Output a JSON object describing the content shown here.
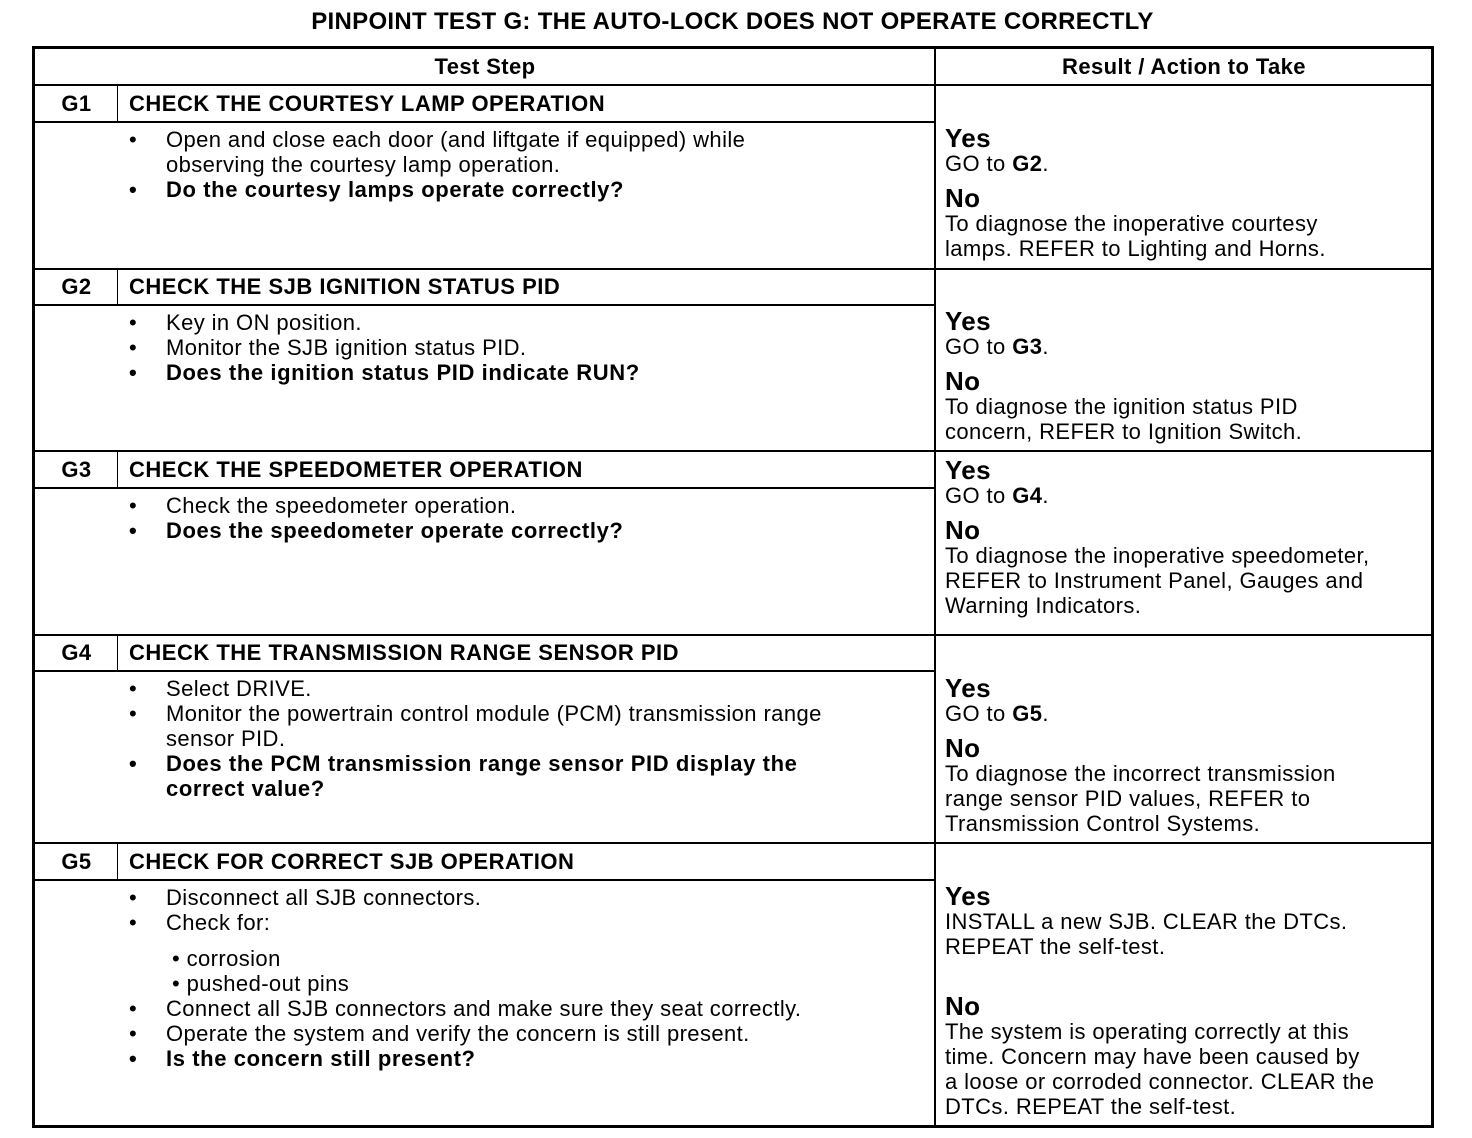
{
  "document": {
    "title": "PINPOINT TEST  G: THE AUTO-LOCK DOES NOT OPERATE CORRECTLY",
    "columns": {
      "test_step": "Test Step",
      "result": "Result / Action to Take"
    },
    "steps": [
      {
        "id": "G1",
        "title": "CHECK THE COURTESY LAMP OPERATION",
        "bullets": [
          {
            "text": "Open and close each door (and liftgate if equipped) while\nobserving the courtesy lamp operation.",
            "bold": false
          },
          {
            "text": "Do the courtesy lamps operate correctly?",
            "bold": true
          }
        ],
        "yes_label": "Yes",
        "yes_prefix": "GO to ",
        "yes_target": "G2",
        "yes_suffix": ".",
        "no_label": "No",
        "no_text": "To diagnose the inoperative courtesy\nlamps. REFER to Lighting and Horns."
      },
      {
        "id": "G2",
        "title": "CHECK THE SJB IGNITION STATUS PID",
        "bullets": [
          {
            "text": "Key in ON position.",
            "bold": false
          },
          {
            "text": "Monitor the SJB ignition status PID.",
            "bold": false
          },
          {
            "text": "Does the ignition status PID indicate RUN?",
            "bold": true
          }
        ],
        "yes_label": "Yes",
        "yes_prefix": "GO to ",
        "yes_target": "G3",
        "yes_suffix": ".",
        "no_label": "No",
        "no_text": "To diagnose the ignition status PID\nconcern, REFER to Ignition Switch."
      },
      {
        "id": "G3",
        "title": "CHECK THE SPEEDOMETER OPERATION",
        "bullets": [
          {
            "text": "Check the speedometer operation.",
            "bold": false
          },
          {
            "text": "Does the speedometer operate correctly?",
            "bold": true
          }
        ],
        "yes_label": "Yes",
        "yes_prefix": "GO to ",
        "yes_target": "G4",
        "yes_suffix": ".",
        "no_label": "No",
        "no_text": "To diagnose the inoperative speedometer,\nREFER to Instrument Panel, Gauges and\nWarning Indicators."
      },
      {
        "id": "G4",
        "title": "CHECK THE TRANSMISSION RANGE SENSOR PID",
        "bullets": [
          {
            "text": "Select DRIVE.",
            "bold": false
          },
          {
            "text": "Monitor the powertrain control module (PCM) transmission range\nsensor PID.",
            "bold": false
          },
          {
            "text": "Does the PCM transmission range sensor PID display the\ncorrect value?",
            "bold": true
          }
        ],
        "yes_label": "Yes",
        "yes_prefix": "GO to ",
        "yes_target": "G5",
        "yes_suffix": ".",
        "no_label": "No",
        "no_text": "To diagnose the incorrect transmission\nrange sensor PID values, REFER to\nTransmission Control Systems."
      },
      {
        "id": "G5",
        "title": "CHECK FOR CORRECT SJB OPERATION",
        "bullets": [
          {
            "text": "Disconnect all SJB connectors.",
            "bold": false
          },
          {
            "text": "Check for:",
            "bold": false,
            "sub": [
              "corrosion",
              "pushed-out pins"
            ]
          },
          {
            "text": "Connect all SJB connectors and make sure they seat correctly.",
            "bold": false
          },
          {
            "text": "Operate the system and verify the concern is still present.",
            "bold": false
          },
          {
            "text": "Is the concern still present?",
            "bold": true
          }
        ],
        "yes_label": "Yes",
        "yes_prefix": "INSTALL a new SJB. CLEAR the DTCs.\nREPEAT the self-test.",
        "yes_target": "",
        "yes_suffix": "",
        "no_label": "No",
        "no_text": "The system is operating correctly at this\ntime. Concern may have been caused by\na loose or corroded connector. CLEAR the\nDTCs. REPEAT the self-test."
      }
    ]
  }
}
